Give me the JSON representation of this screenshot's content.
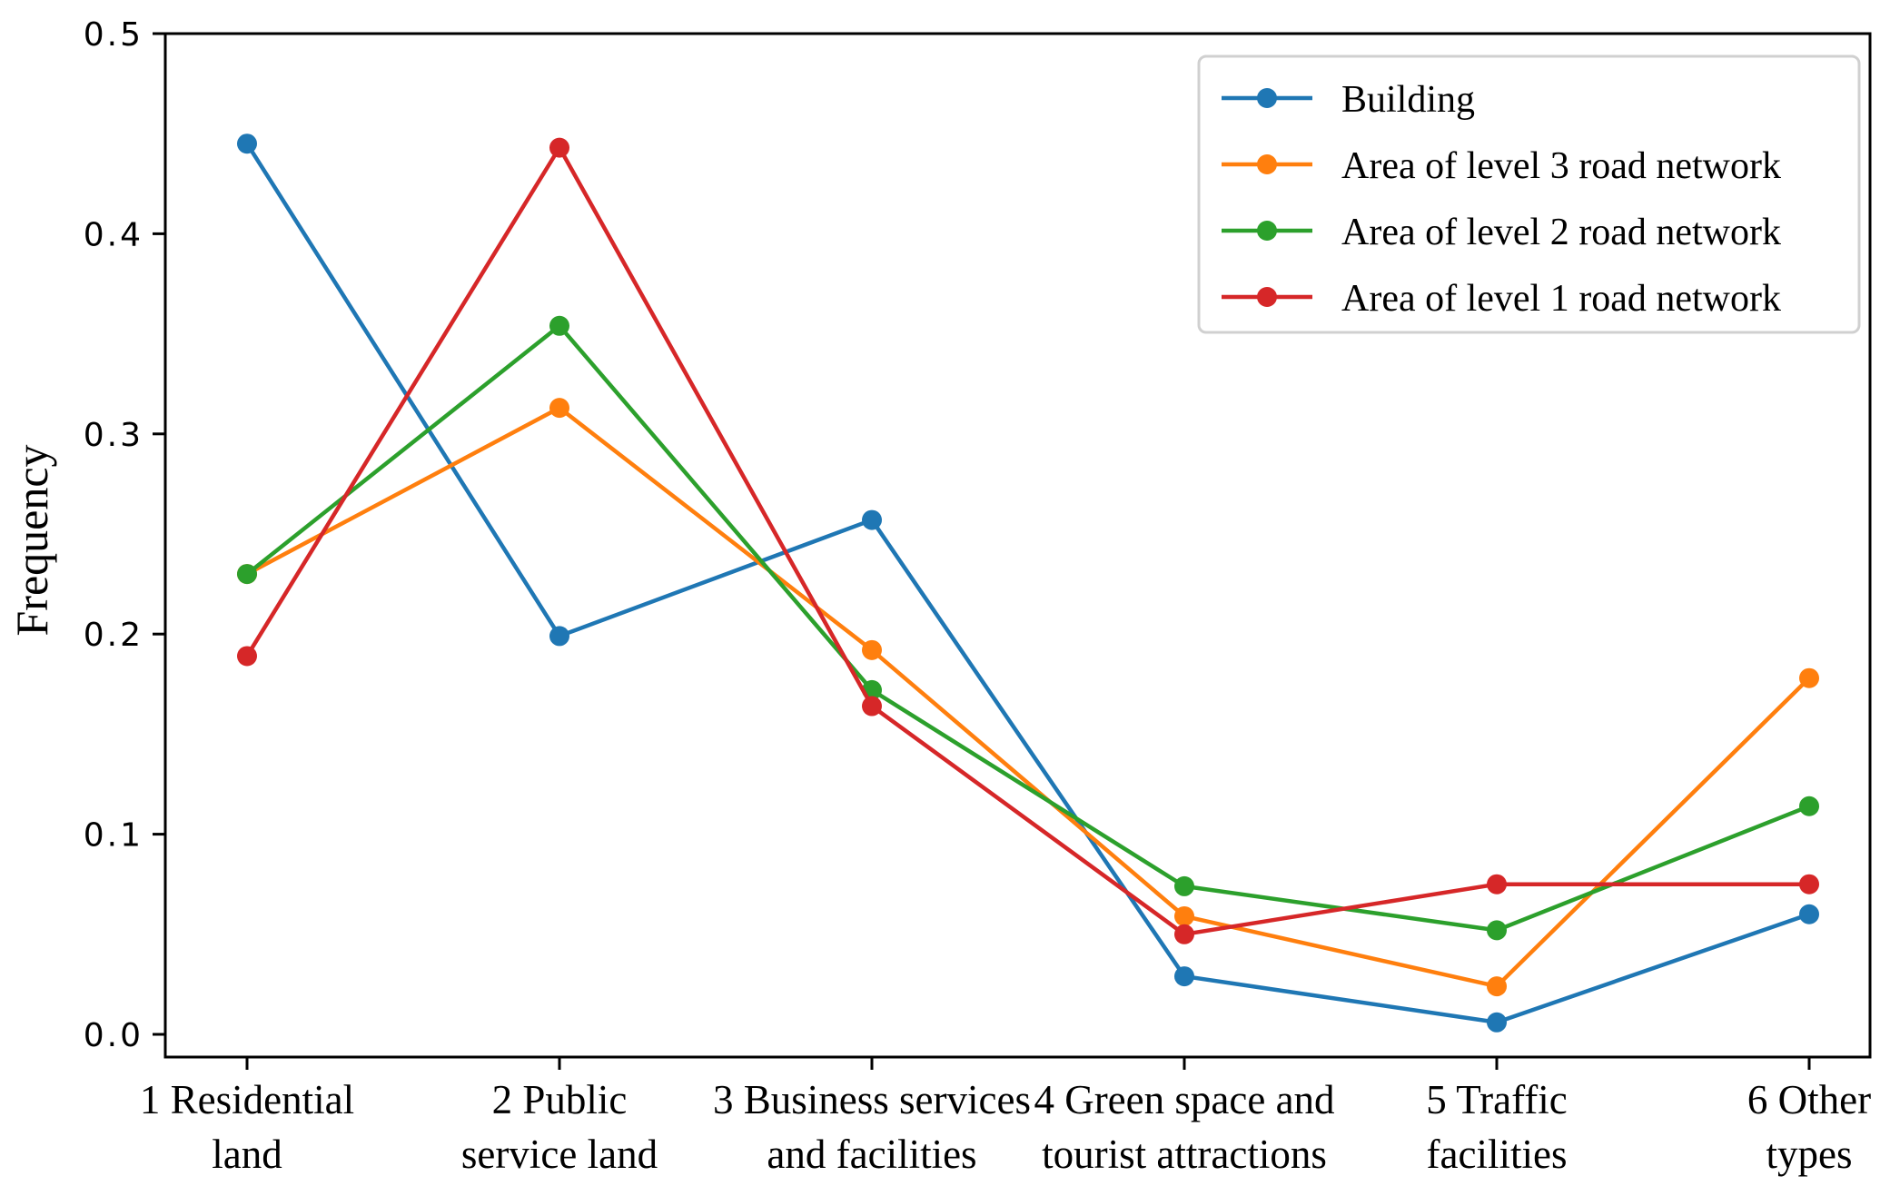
{
  "chart_data": {
    "type": "line",
    "title": "",
    "xlabel": "",
    "ylabel": "Frequency",
    "ylim": [
      0,
      0.5
    ],
    "yticks": [
      "0.0",
      "0.1",
      "0.2",
      "0.3",
      "0.4",
      "0.5"
    ],
    "categories": [
      [
        "1 Residential",
        "land"
      ],
      [
        "2 Public",
        "service land"
      ],
      [
        "3 Business services",
        "and facilities"
      ],
      [
        "4 Green space and",
        "tourist attractions"
      ],
      [
        "5 Traffic",
        "facilities"
      ],
      [
        "6 Other",
        "types"
      ]
    ],
    "series": [
      {
        "name": "Building",
        "color": "#1f77b4",
        "values": [
          0.445,
          0.199,
          0.257,
          0.029,
          0.006,
          0.06
        ]
      },
      {
        "name": "Area of level 3 road network",
        "color": "#ff7f0e",
        "values": [
          0.23,
          0.313,
          0.192,
          0.059,
          0.024,
          0.178
        ]
      },
      {
        "name": "Area of level 2 road network",
        "color": "#2ca02c",
        "values": [
          0.23,
          0.354,
          0.172,
          0.074,
          0.052,
          0.114
        ]
      },
      {
        "name": "Area of level 1 road network",
        "color": "#d62728",
        "values": [
          0.189,
          0.443,
          0.164,
          0.05,
          0.075,
          0.075
        ]
      }
    ],
    "grid": false,
    "legend": "top-right"
  }
}
